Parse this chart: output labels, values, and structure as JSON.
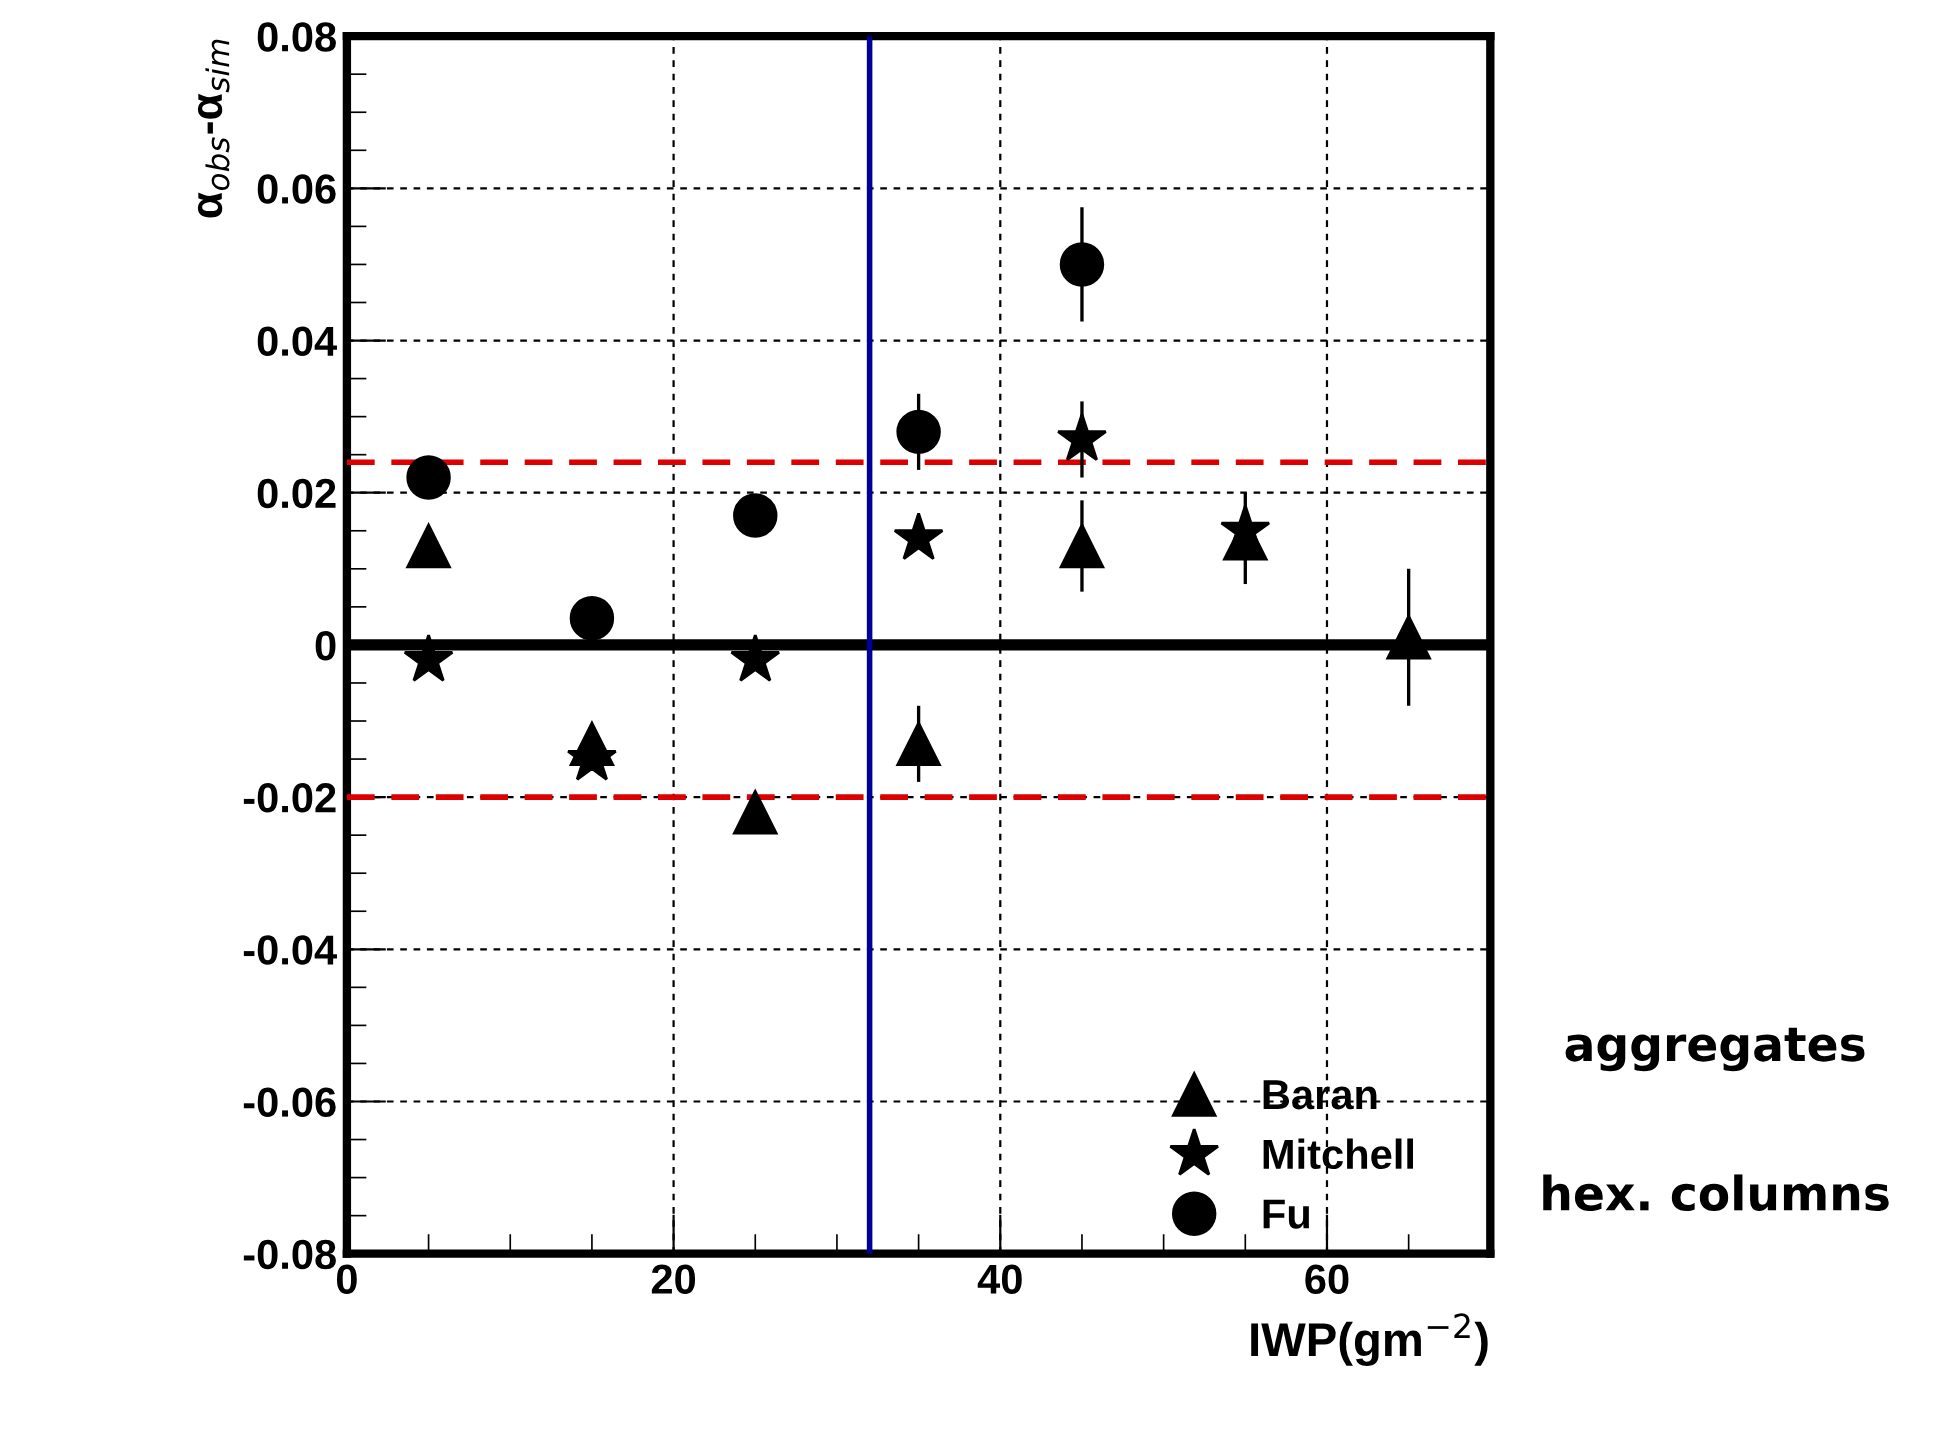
{
  "chart_data": {
    "type": "scatter",
    "xlabel": "IWP(gm$^{−2}$)",
    "ylabel": "α$_{obs}$-α$_{sim}$",
    "xlim": [
      0,
      70
    ],
    "xticks": [
      0,
      20,
      40,
      60
    ],
    "ylim": [
      -0.08,
      0.08
    ],
    "yticks": [
      -0.08,
      -0.06,
      -0.04,
      -0.02,
      0,
      0.02,
      0.04,
      0.06,
      0.08
    ],
    "grid": true,
    "legend": "bottom right",
    "series": [
      {
        "name": "Baran",
        "color": "#000000",
        "marker": "triangle",
        "x": [
          5,
          15,
          25,
          35,
          45,
          55,
          65
        ],
        "values": [
          0.013,
          -0.013,
          -0.022,
          -0.013,
          0.013,
          0.014,
          0.001
        ],
        "errors": [
          null,
          null,
          null,
          0.005,
          0.006,
          0.006,
          0.009
        ]
      },
      {
        "name": "Mitchell",
        "color": "#000000",
        "marker": "star",
        "x": [
          5,
          15,
          25,
          35,
          45,
          55
        ],
        "values": [
          -0.002,
          -0.015,
          -0.002,
          0.014,
          0.027,
          0.015
        ],
        "errors": [
          null,
          null,
          null,
          null,
          0.005,
          null
        ]
      },
      {
        "name": "Fu",
        "color": "#000000",
        "marker": "circle",
        "x": [
          5,
          15,
          25,
          35,
          45
        ],
        "values": [
          0.022,
          0.0035,
          0.017,
          0.028,
          0.05
        ],
        "errors": [
          null,
          null,
          null,
          0.005,
          0.0075
        ]
      }
    ],
    "ref_lines": [
      {
        "axis": "y",
        "value": 0.024,
        "color": "#dd0000",
        "line_style": "dashed"
      },
      {
        "axis": "y",
        "value": -0.02,
        "color": "#dd0000",
        "line_style": "dashed"
      },
      {
        "axis": "y",
        "value": 0,
        "color": "#000000",
        "line_style": "solid"
      },
      {
        "axis": "x",
        "value": 32,
        "color": "#000099",
        "line_style": "solid"
      }
    ],
    "annotations": [
      "aggregates",
      "hex. columns"
    ]
  }
}
